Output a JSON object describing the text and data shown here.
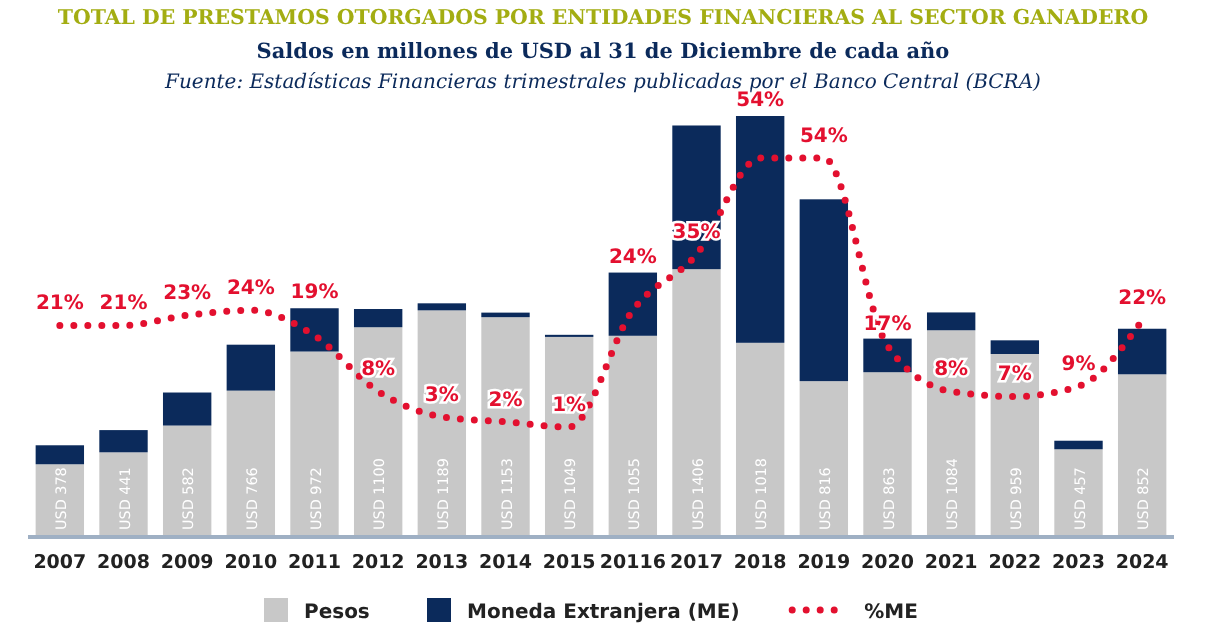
{
  "chart_data": {
    "type": "bar",
    "title": "TOTAL DE PRESTAMOS OTORGADOS POR ENTIDADES FINANCIERAS AL SECTOR GANADERO",
    "subtitle": "Saldos en millones de USD al 31 de Diciembre de cada año",
    "annotations": [
      "Fuente: Estadísticas Financieras trimestrales publicadas por el Banco Central (BCRA)"
    ],
    "categories": [
      "2007",
      "2008",
      "2009",
      "2010",
      "2011",
      "2012",
      "2013",
      "2014",
      "2015",
      "20116",
      "2017",
      "2018",
      "2019",
      "2020",
      "2021",
      "2022",
      "2023",
      "2024"
    ],
    "stacked": true,
    "legend": "bottom",
    "line_style": "dotted",
    "marker": "none",
    "series": [
      {
        "name": "Pesos",
        "color": "#c8c8c8",
        "values": [
          378,
          441,
          582,
          766,
          972,
          1100,
          1189,
          1153,
          1049,
          1055,
          1406,
          1018,
          816,
          863,
          1084,
          959,
          457,
          852
        ],
        "value_labels": [
          "USD 378",
          "USD 441",
          "USD 582",
          "USD 766",
          "USD 972",
          "USD 1100",
          "USD 1189",
          "USD 1153",
          "USD 1049",
          "USD 1055",
          "USD 1406",
          "USD 1018",
          "USD 816",
          "USD 863",
          "USD 1084",
          "USD 959",
          "USD 457",
          "USD 852"
        ]
      },
      {
        "name": "Moneda Extranjera (ME)",
        "color": "#0b2a5b",
        "values": [
          100,
          117,
          174,
          242,
          228,
          96,
          37,
          24,
          11,
          333,
          757,
          1195,
          958,
          177,
          94,
          72,
          45,
          240
        ]
      },
      {
        "name": "%ME",
        "type": "line",
        "axis": "y2",
        "color": "#e3102f",
        "values": [
          21,
          21,
          23,
          24,
          19,
          8,
          3,
          2,
          1,
          24,
          35,
          54,
          54,
          17,
          8,
          7,
          9,
          22
        ],
        "value_labels": [
          "21%",
          "21%",
          "23%",
          "24%",
          "19%",
          "8%",
          "3%",
          "2%",
          "1%",
          "24%",
          "35%",
          "54%",
          "54%",
          "17%",
          "8%",
          "7%",
          "9%",
          "22%"
        ]
      }
    ]
  }
}
